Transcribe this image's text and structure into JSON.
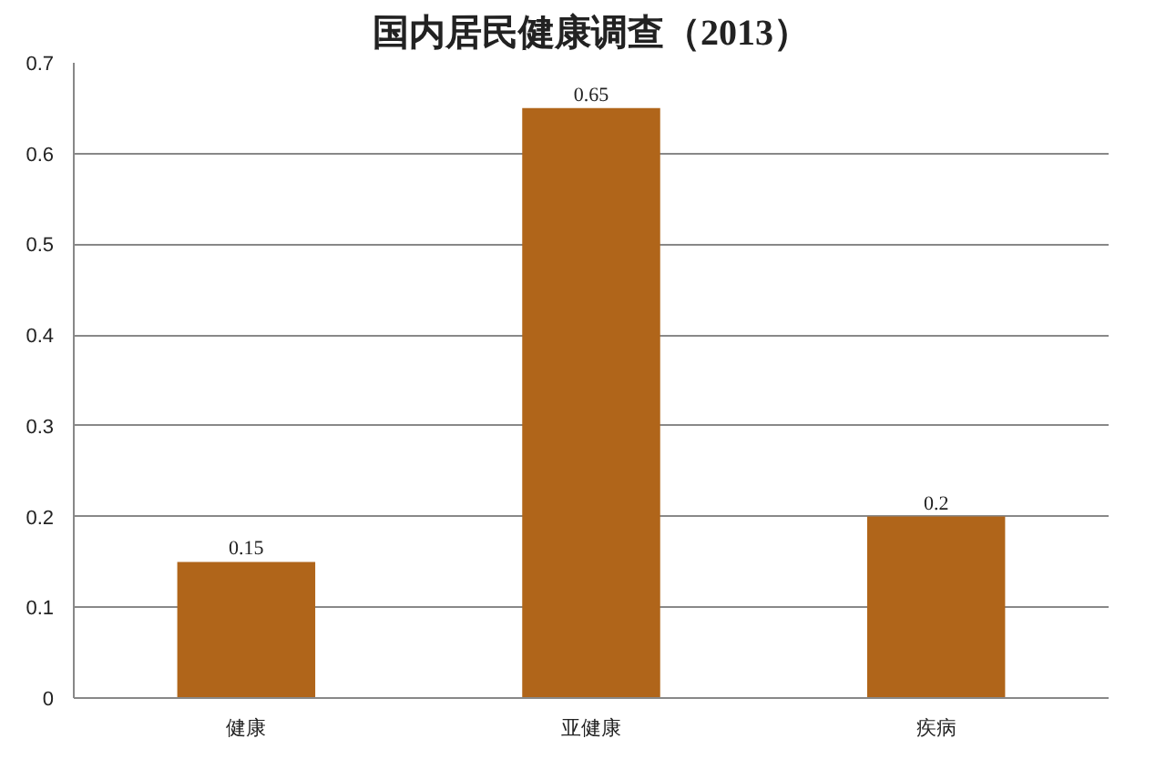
{
  "chart_data": {
    "type": "bar",
    "title": "国内居民健康调查（2013）",
    "categories": [
      "健康",
      "亚健康",
      "疾病"
    ],
    "values": [
      0.15,
      0.65,
      0.2
    ],
    "color": "#b0651a",
    "ylim": [
      0,
      0.7
    ],
    "yticks": [
      0,
      0.1,
      0.2,
      0.3,
      0.4,
      0.5,
      0.6,
      0.7
    ],
    "grid": "y",
    "data_labels": true
  }
}
